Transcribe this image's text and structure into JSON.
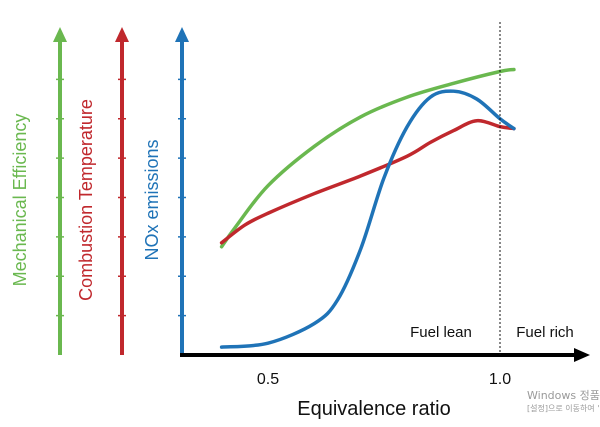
{
  "chart_data": {
    "type": "line",
    "xlabel": "Equivalence ratio",
    "x_ticks": [
      0.5,
      1.0
    ],
    "x_tick_labels": [
      "0.5",
      "1.0"
    ],
    "xlim": [
      0.3,
      1.18
    ],
    "ylim": [
      0,
      8
    ],
    "y_ticks": [
      1,
      2,
      3,
      4,
      5,
      6,
      7
    ],
    "grid": false,
    "legend": "none",
    "divider_x": 1.0,
    "annotations": {
      "fuel_lean": "Fuel lean",
      "fuel_rich": "Fuel rich"
    },
    "axes": [
      {
        "label": "Mechanical Efficiency",
        "color": "#6ab84f"
      },
      {
        "label": "Combustion Temperature",
        "color": "#c0282d"
      },
      {
        "label": "NOx emissions",
        "color": "#1f73b7"
      }
    ],
    "series": [
      {
        "name": "Mechanical Efficiency",
        "color": "#6ab84f",
        "x": [
          0.4,
          0.43,
          0.5,
          0.6,
          0.7,
          0.8,
          0.9,
          1.0,
          1.03
        ],
        "y": [
          2.75,
          3.25,
          4.3,
          5.3,
          6.05,
          6.55,
          6.9,
          7.2,
          7.25
        ]
      },
      {
        "name": "Combustion Temperature",
        "color": "#c0282d",
        "x": [
          0.4,
          0.45,
          0.5,
          0.6,
          0.7,
          0.8,
          0.85,
          0.9,
          0.95,
          1.0,
          1.03
        ],
        "y": [
          2.85,
          3.3,
          3.6,
          4.1,
          4.55,
          5.05,
          5.4,
          5.7,
          5.95,
          5.8,
          5.75
        ]
      },
      {
        "name": "NOx emissions",
        "color": "#1f73b7",
        "x": [
          0.4,
          0.5,
          0.6,
          0.65,
          0.7,
          0.75,
          0.8,
          0.85,
          0.9,
          0.95,
          1.0,
          1.03
        ],
        "y": [
          0.2,
          0.3,
          0.8,
          1.4,
          2.7,
          4.5,
          5.8,
          6.55,
          6.7,
          6.5,
          6.0,
          5.75
        ]
      }
    ]
  },
  "watermark": {
    "line1": "Windows 정품 '",
    "line2": "[설정]으로 이동하여 '"
  }
}
